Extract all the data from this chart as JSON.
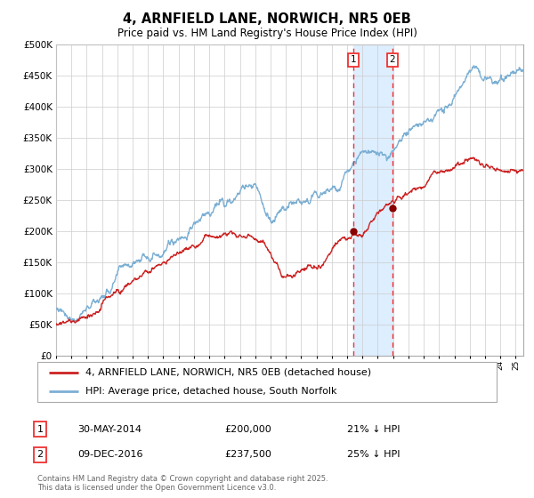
{
  "title": "4, ARNFIELD LANE, NORWICH, NR5 0EB",
  "subtitle": "Price paid vs. HM Land Registry's House Price Index (HPI)",
  "hpi_label": "HPI: Average price, detached house, South Norfolk",
  "property_label": "4, ARNFIELD LANE, NORWICH, NR5 0EB (detached house)",
  "sale1_date": "30-MAY-2014",
  "sale1_price": 200000,
  "sale1_hpi_pct": "21% ↓ HPI",
  "sale2_date": "09-DEC-2016",
  "sale2_price": 237500,
  "sale2_hpi_pct": "25% ↓ HPI",
  "sale1_x": 2014.41,
  "sale2_x": 2016.94,
  "hpi_color": "#7bafd4",
  "property_color": "#cc2222",
  "marker_color": "#880000",
  "vline_color": "#ee3333",
  "shade_color": "#ddeeff",
  "background_color": "#ffffff",
  "grid_color": "#cccccc",
  "ylim": [
    0,
    500000
  ],
  "xlim": [
    1995,
    2025.5
  ],
  "footer": "Contains HM Land Registry data © Crown copyright and database right 2025.\nThis data is licensed under the Open Government Licence v3.0."
}
